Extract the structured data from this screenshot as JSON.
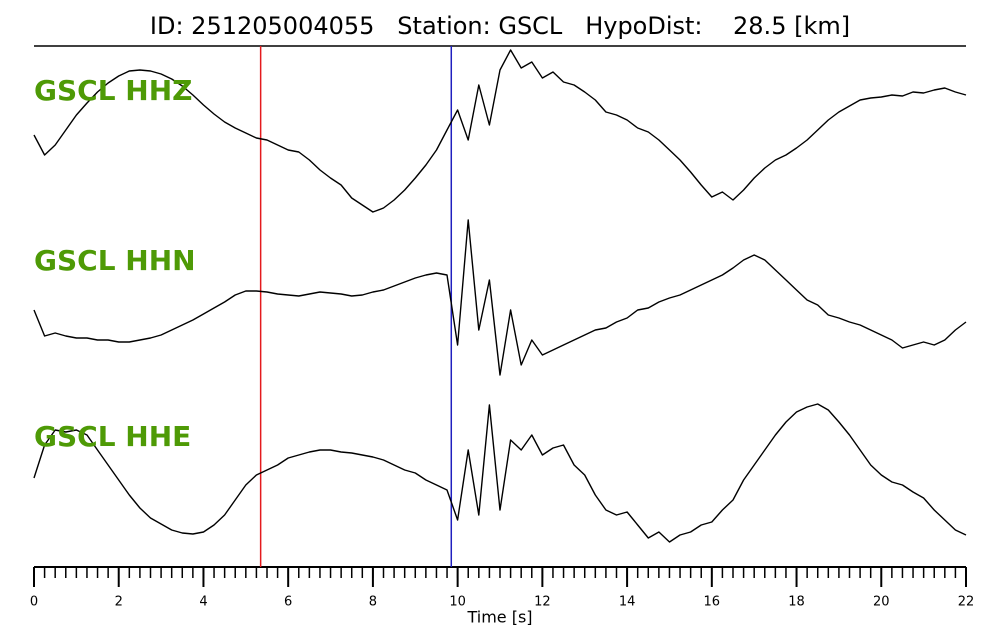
{
  "chart_data": {
    "type": "line",
    "title": "ID: 251205004055   Station: GSCL   HypoDist:    28.5 [km]",
    "xlabel": "Time [s]",
    "xlim": [
      0,
      22
    ],
    "xticks": [
      0,
      2,
      4,
      6,
      8,
      10,
      12,
      14,
      16,
      18,
      20,
      22
    ],
    "ylim": [
      -1,
      1
    ],
    "label_color": "#4e9a06",
    "markers": [
      {
        "x": 5.35,
        "color": "#e41a1c"
      },
      {
        "x": 9.85,
        "color": "#1f1fbf"
      }
    ],
    "x": [
      0,
      0.25,
      0.5,
      0.75,
      1,
      1.25,
      1.5,
      1.75,
      2,
      2.25,
      2.5,
      2.75,
      3,
      3.25,
      3.5,
      3.75,
      4,
      4.25,
      4.5,
      4.75,
      5,
      5.25,
      5.5,
      5.75,
      6,
      6.25,
      6.5,
      6.75,
      7,
      7.25,
      7.5,
      7.75,
      8,
      8.25,
      8.5,
      8.75,
      9,
      9.25,
      9.5,
      9.75,
      10,
      10.25,
      10.5,
      10.75,
      11,
      11.25,
      11.5,
      11.75,
      12,
      12.25,
      12.5,
      12.75,
      13,
      13.25,
      13.5,
      13.75,
      14,
      14.25,
      14.5,
      14.75,
      15,
      15.25,
      15.5,
      15.75,
      16,
      16.25,
      16.5,
      16.75,
      17,
      17.25,
      17.5,
      17.75,
      18,
      18.25,
      18.5,
      18.75,
      19,
      19.25,
      19.5,
      19.75,
      20,
      20.25,
      20.5,
      20.75,
      21,
      21.25,
      21.5,
      21.75,
      22
    ],
    "series": [
      {
        "name": "GSCL HHZ",
        "color": "#000000",
        "values": [
          0.05,
          -0.15,
          -0.05,
          0.1,
          0.25,
          0.37,
          0.48,
          0.57,
          0.64,
          0.69,
          0.7,
          0.69,
          0.66,
          0.61,
          0.54,
          0.45,
          0.35,
          0.26,
          0.18,
          0.12,
          0.07,
          0.02,
          0.0,
          -0.05,
          -0.1,
          -0.12,
          -0.2,
          -0.3,
          -0.38,
          -0.45,
          -0.58,
          -0.65,
          -0.72,
          -0.68,
          -0.6,
          -0.5,
          -0.38,
          -0.25,
          -0.1,
          0.1,
          0.3,
          0.0,
          0.55,
          0.15,
          0.7,
          0.9,
          0.72,
          0.78,
          0.62,
          0.68,
          0.58,
          0.55,
          0.48,
          0.4,
          0.28,
          0.25,
          0.2,
          0.12,
          0.08,
          0.0,
          -0.1,
          -0.2,
          -0.32,
          -0.45,
          -0.57,
          -0.52,
          -0.6,
          -0.5,
          -0.38,
          -0.28,
          -0.2,
          -0.15,
          -0.08,
          0.0,
          0.1,
          0.2,
          0.28,
          0.34,
          0.4,
          0.42,
          0.43,
          0.45,
          0.44,
          0.48,
          0.47,
          0.5,
          0.52,
          0.48,
          0.45
        ]
      },
      {
        "name": "GSCL HHN",
        "color": "#000000",
        "values": [
          -0.1,
          -0.36,
          -0.33,
          -0.36,
          -0.38,
          -0.38,
          -0.4,
          -0.4,
          -0.42,
          -0.42,
          -0.4,
          -0.38,
          -0.35,
          -0.3,
          -0.25,
          -0.2,
          -0.14,
          -0.08,
          -0.02,
          0.05,
          0.09,
          0.09,
          0.08,
          0.06,
          0.05,
          0.04,
          0.06,
          0.08,
          0.07,
          0.06,
          0.04,
          0.05,
          0.08,
          0.1,
          0.14,
          0.18,
          0.22,
          0.25,
          0.27,
          0.25,
          -0.45,
          0.8,
          -0.3,
          0.2,
          -0.75,
          -0.1,
          -0.65,
          -0.4,
          -0.55,
          -0.5,
          -0.45,
          -0.4,
          -0.35,
          -0.3,
          -0.28,
          -0.22,
          -0.18,
          -0.1,
          -0.08,
          -0.02,
          0.02,
          0.05,
          0.1,
          0.15,
          0.2,
          0.25,
          0.32,
          0.4,
          0.45,
          0.4,
          0.3,
          0.2,
          0.1,
          0.0,
          -0.05,
          -0.15,
          -0.18,
          -0.22,
          -0.25,
          -0.3,
          -0.35,
          -0.4,
          -0.48,
          -0.45,
          -0.42,
          -0.45,
          -0.4,
          -0.3,
          -0.22
        ]
      },
      {
        "name": "GSCL HHE",
        "color": "#000000",
        "values": [
          -0.08,
          0.25,
          0.4,
          0.38,
          0.4,
          0.35,
          0.2,
          0.05,
          -0.1,
          -0.25,
          -0.38,
          -0.48,
          -0.54,
          -0.6,
          -0.63,
          -0.64,
          -0.62,
          -0.55,
          -0.45,
          -0.3,
          -0.15,
          -0.05,
          0.0,
          0.05,
          0.12,
          0.15,
          0.18,
          0.2,
          0.2,
          0.18,
          0.17,
          0.15,
          0.13,
          0.1,
          0.05,
          0.0,
          -0.03,
          -0.1,
          -0.15,
          -0.2,
          -0.5,
          0.2,
          -0.45,
          0.65,
          -0.4,
          0.3,
          0.2,
          0.35,
          0.15,
          0.22,
          0.25,
          0.05,
          -0.05,
          -0.25,
          -0.4,
          -0.45,
          -0.42,
          -0.55,
          -0.68,
          -0.62,
          -0.72,
          -0.65,
          -0.62,
          -0.55,
          -0.52,
          -0.4,
          -0.3,
          -0.1,
          0.05,
          0.2,
          0.35,
          0.48,
          0.58,
          0.63,
          0.66,
          0.6,
          0.48,
          0.35,
          0.2,
          0.05,
          -0.05,
          -0.12,
          -0.15,
          -0.22,
          -0.28,
          -0.4,
          -0.5,
          -0.6,
          -0.65
        ]
      }
    ]
  }
}
